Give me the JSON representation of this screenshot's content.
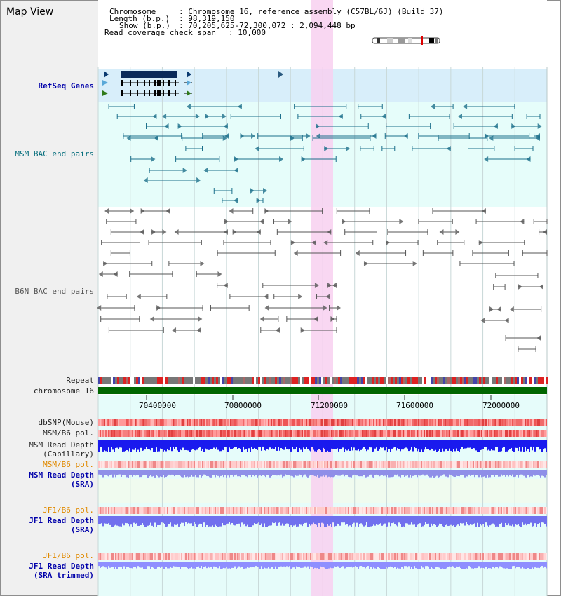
{
  "view_title": "Map View",
  "info": {
    "chromosome_label": "Chromosome",
    "chromosome_value": ": Chromosome 16, reference assembly (C57BL/6J) (Build 37)",
    "length_label": "Length (b.p.)",
    "length_value": ": 98,319,150",
    "show_label": "Show (b.p.)",
    "show_value": ": 70,205,625-72,300,072 : 2,094,448 bp",
    "coverage_label": "Read coverage check span",
    "coverage_value": ": 10,000"
  },
  "tracks": {
    "refseq": "RefSeq Genes",
    "msm_bac": "MSM BAC end pairs",
    "b6n_bac": "B6N BAC end pairs",
    "repeat": "Repeat",
    "chromosome": "chromosome 16",
    "dbsnp": "dbSNP(Mouse)",
    "msm_b6_pol_1": "MSM/B6 pol.",
    "msm_read_depth_cap": "MSM Read Depth\n(Capillary)",
    "msm_b6_pol_2": "MSM/B6 pol.",
    "msm_read_depth_sra": "MSM Read Depth\n(SRA)",
    "jf1_b6_pol_1": "JF1/B6 pol.",
    "jf1_read_depth_sra": "JF1 Read Depth\n(SRA)",
    "jf1_b6_pol_2": "JF1/B6 pol.",
    "jf1_read_depth_trimmed": "JF1 Read Depth\n(SRA trimmed)"
  },
  "axis_ticks": [
    "70400000",
    "70800000",
    "71200000",
    "71600000",
    "72000000"
  ],
  "colors": {
    "label_default": "#222222",
    "label_blue": "#0000aa",
    "label_teal": "#006b7a",
    "label_gray": "#555555",
    "label_orange": "#e08a00",
    "highlight": "#f8d0f0",
    "chromosome_bar": "#006600"
  }
}
